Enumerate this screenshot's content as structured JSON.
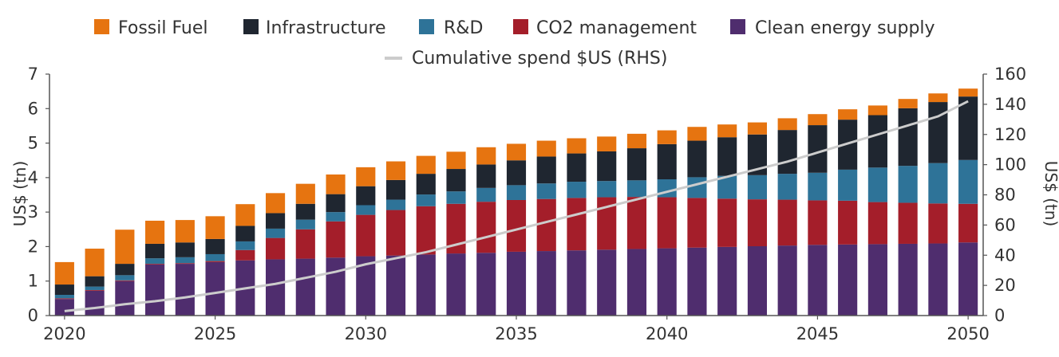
{
  "chart_data": {
    "type": "bar",
    "stacked": true,
    "title": "",
    "xlabel": "",
    "ylabel": "US$ (tn)",
    "y2label": "US$ (tn)",
    "ylim": [
      0,
      7
    ],
    "y2lim": [
      0,
      160
    ],
    "yticks": [
      "0",
      "1",
      "2",
      "3",
      "4",
      "5",
      "6",
      "7"
    ],
    "y2ticks": [
      "0",
      "20",
      "40",
      "60",
      "80",
      "100",
      "120",
      "140",
      "160"
    ],
    "xticks": [
      "2020",
      "2025",
      "2030",
      "2035",
      "2040",
      "2045",
      "2050"
    ],
    "categories": [
      "2020",
      "2021",
      "2022",
      "2023",
      "2024",
      "2025",
      "2026",
      "2027",
      "2028",
      "2029",
      "2030",
      "2031",
      "2032",
      "2033",
      "2034",
      "2035",
      "2036",
      "2037",
      "2038",
      "2039",
      "2040",
      "2041",
      "2042",
      "2043",
      "2044",
      "2045",
      "2046",
      "2047",
      "2048",
      "2049",
      "2050"
    ],
    "series": [
      {
        "name": "Clean energy supply",
        "color": "#4f2d6e",
        "values": [
          0.48,
          0.72,
          1.0,
          1.48,
          1.5,
          1.55,
          1.6,
          1.63,
          1.65,
          1.68,
          1.72,
          1.74,
          1.77,
          1.8,
          1.82,
          1.85,
          1.87,
          1.89,
          1.91,
          1.93,
          1.95,
          1.97,
          1.99,
          2.01,
          2.03,
          2.05,
          2.06,
          2.07,
          2.08,
          2.09,
          2.12
        ]
      },
      {
        "name": "CO2 management",
        "color": "#a41e2a",
        "values": [
          0.02,
          0.02,
          0.02,
          0.02,
          0.02,
          0.03,
          0.3,
          0.62,
          0.85,
          1.05,
          1.2,
          1.32,
          1.4,
          1.44,
          1.48,
          1.5,
          1.51,
          1.52,
          1.52,
          1.51,
          1.48,
          1.44,
          1.4,
          1.36,
          1.33,
          1.29,
          1.27,
          1.22,
          1.19,
          1.16,
          1.12
        ]
      },
      {
        "name": "R&D",
        "color": "#2e7398",
        "values": [
          0.1,
          0.1,
          0.15,
          0.16,
          0.17,
          0.2,
          0.25,
          0.27,
          0.28,
          0.27,
          0.28,
          0.3,
          0.34,
          0.36,
          0.4,
          0.43,
          0.45,
          0.47,
          0.47,
          0.48,
          0.52,
          0.6,
          0.66,
          0.7,
          0.75,
          0.8,
          0.9,
          1.0,
          1.07,
          1.17,
          1.27
        ]
      },
      {
        "name": "Infrastructure",
        "color": "#1f2630",
        "values": [
          0.3,
          0.3,
          0.33,
          0.42,
          0.43,
          0.44,
          0.45,
          0.45,
          0.46,
          0.52,
          0.55,
          0.57,
          0.6,
          0.65,
          0.68,
          0.72,
          0.78,
          0.82,
          0.86,
          0.93,
          1.02,
          1.06,
          1.12,
          1.18,
          1.27,
          1.38,
          1.45,
          1.52,
          1.67,
          1.77,
          1.84
        ]
      },
      {
        "name": "Fossil Fuel",
        "color": "#e67410",
        "values": [
          0.65,
          0.8,
          0.99,
          0.67,
          0.65,
          0.66,
          0.63,
          0.58,
          0.58,
          0.57,
          0.55,
          0.54,
          0.52,
          0.5,
          0.5,
          0.48,
          0.46,
          0.44,
          0.43,
          0.42,
          0.4,
          0.4,
          0.37,
          0.35,
          0.34,
          0.32,
          0.3,
          0.28,
          0.27,
          0.25,
          0.23
        ]
      }
    ],
    "line": {
      "name": "Cumulative spend $US (RHS)",
      "axis": "right",
      "color": "#cccccc",
      "values": [
        3,
        5,
        7.5,
        9.5,
        12,
        15,
        18,
        21,
        25,
        29,
        34,
        38,
        42,
        47,
        52,
        57,
        62,
        67,
        72,
        77,
        82,
        87,
        92,
        97,
        102,
        108,
        114,
        120,
        126,
        132,
        142
      ]
    },
    "legend": {
      "position": "top",
      "order": [
        "Fossil Fuel",
        "Infrastructure",
        "R&D",
        "CO2 management",
        "Clean energy supply"
      ],
      "line_label": "Cumulative spend $US (RHS)"
    }
  }
}
